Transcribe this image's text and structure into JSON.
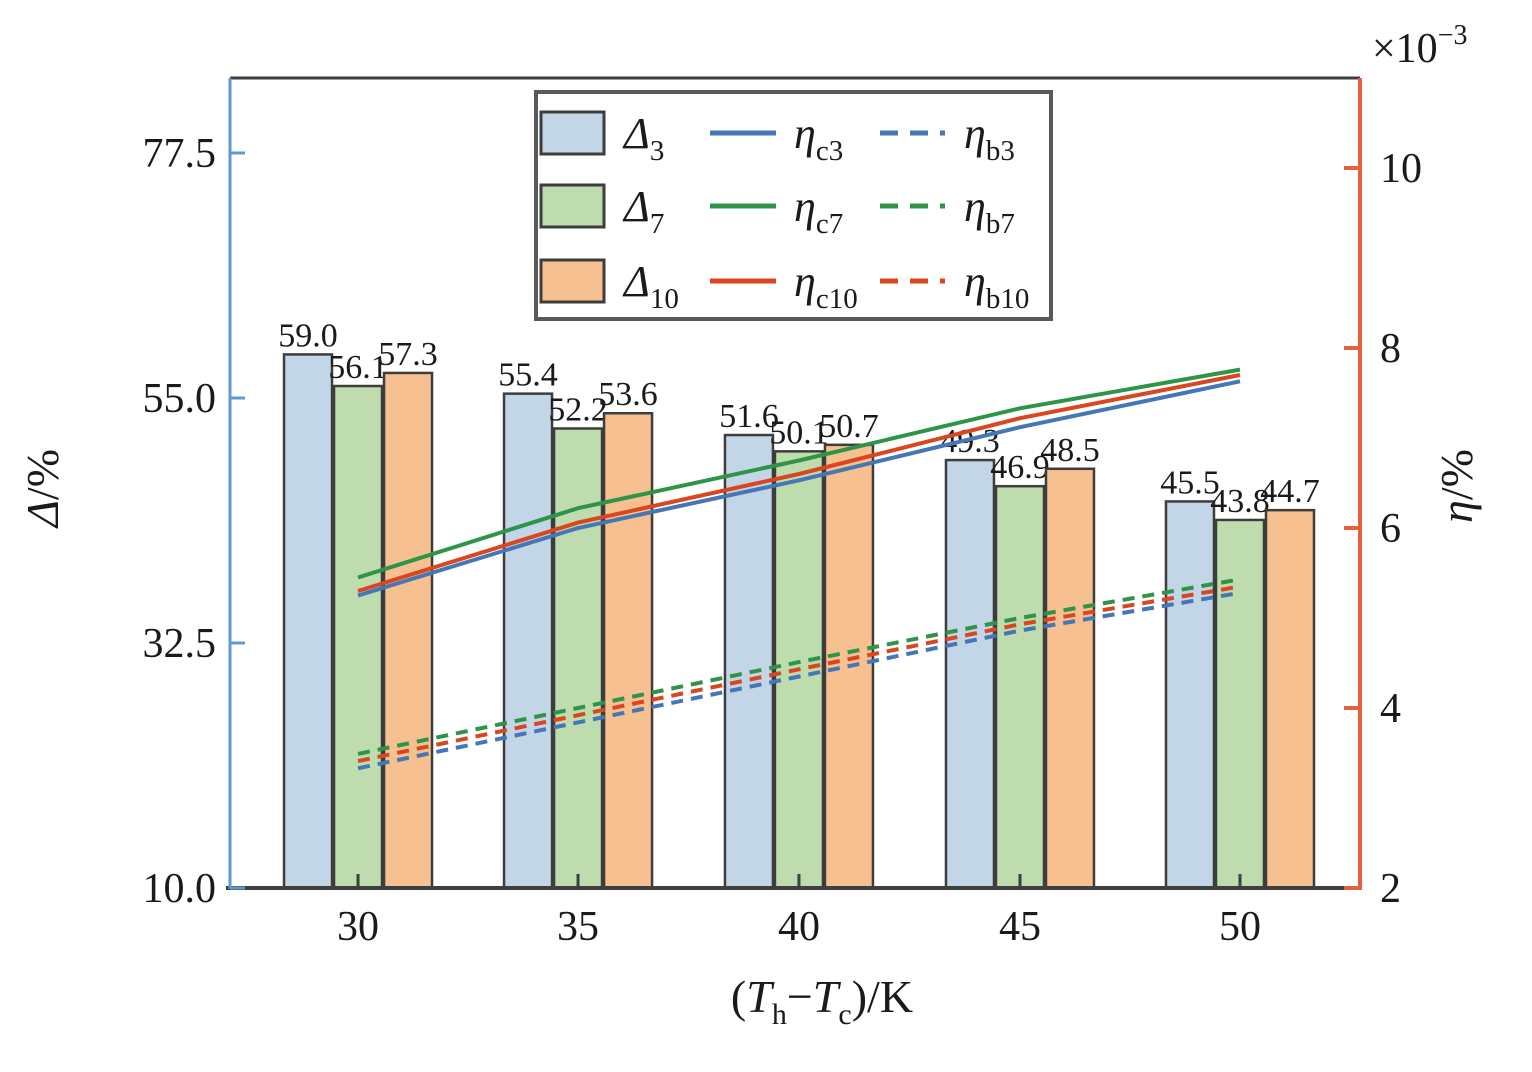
{
  "axes": {
    "left": {
      "title_symbol": "Δ",
      "title_suffix": "/%",
      "tick_labels": [
        "77.5",
        "55.0",
        "32.5",
        "10.0"
      ],
      "tick_values": [
        77.5,
        55.0,
        32.5,
        10.0
      ],
      "color": "#5b9bd5"
    },
    "right": {
      "title_symbol": "η",
      "title_suffix": "/%",
      "multiplier_base": "×10",
      "multiplier_exp": "−3",
      "tick_labels": [
        "10",
        "8",
        "6",
        "4",
        "2"
      ],
      "tick_values": [
        10,
        8,
        6,
        4,
        2
      ],
      "color": "#e5613c"
    },
    "x": {
      "title_parts": {
        "open": "(",
        "t1": "T",
        "s1": "h",
        "minus": "−",
        "t2": "T",
        "s2": "c",
        "close": ")/",
        "unit": "K"
      },
      "tick_labels": [
        "30",
        "35",
        "40",
        "45",
        "50"
      ]
    }
  },
  "legend": {
    "rows": [
      {
        "patch_color": "#c3d6e8",
        "line_color": "#4576b5",
        "patch_label": {
          "base": "Δ",
          "sub": "3"
        },
        "solid_label": {
          "base": "η",
          "sub": "c3"
        },
        "dashed_label": {
          "base": "η",
          "sub": "b3"
        }
      },
      {
        "patch_color": "#bedcad",
        "line_color": "#2e9447",
        "patch_label": {
          "base": "Δ",
          "sub": "7"
        },
        "solid_label": {
          "base": "η",
          "sub": "c7"
        },
        "dashed_label": {
          "base": "η",
          "sub": "b7"
        }
      },
      {
        "patch_color": "#f6c091",
        "line_color": "#da461f",
        "patch_label": {
          "base": "Δ",
          "sub": "10"
        },
        "solid_label": {
          "base": "η",
          "sub": "c10"
        },
        "dashed_label": {
          "base": "η",
          "sub": "b10"
        }
      }
    ],
    "border_color": "#595959"
  },
  "colors": {
    "bar_edge": "#3d3d3d",
    "axis_dark": "#3f3f3f",
    "text": "#1a1a1a"
  },
  "chart_data": {
    "type": "bar",
    "title": "",
    "categories": [
      30,
      35,
      40,
      45,
      50
    ],
    "xlabel": "(Th−Tc)/K",
    "ylabel_left": "Δ/%",
    "ylabel_right": "η/% (×10^−3)",
    "ylim_left": [
      10,
      84.4
    ],
    "ylim_right": [
      2,
      11
    ],
    "grid": false,
    "legend_position": "top-center-inside",
    "bar_series": [
      {
        "name": "Δ3",
        "color": "#c3d6e8",
        "values": [
          59.0,
          55.4,
          51.6,
          49.3,
          45.5
        ]
      },
      {
        "name": "Δ7",
        "color": "#bedcad",
        "values": [
          56.1,
          52.2,
          50.1,
          46.9,
          43.8
        ]
      },
      {
        "name": "Δ10",
        "color": "#f6c091",
        "values": [
          57.3,
          53.6,
          50.7,
          48.5,
          44.7
        ]
      }
    ],
    "line_series": [
      {
        "name": "ηc3",
        "style": "solid",
        "color": "#4576b5",
        "values": [
          5.25,
          6.0,
          6.53,
          7.12,
          7.63
        ]
      },
      {
        "name": "ηc10",
        "style": "solid",
        "color": "#da461f",
        "values": [
          5.3,
          6.06,
          6.6,
          7.22,
          7.7
        ]
      },
      {
        "name": "ηc7",
        "style": "solid",
        "color": "#2e9447",
        "values": [
          5.45,
          6.22,
          6.75,
          7.33,
          7.76
        ]
      },
      {
        "name": "ηb3",
        "style": "dashed",
        "color": "#4576b5",
        "values": [
          3.33,
          3.84,
          4.35,
          4.86,
          5.28
        ]
      },
      {
        "name": "ηb10",
        "style": "dashed",
        "color": "#da461f",
        "values": [
          3.41,
          3.92,
          4.43,
          4.93,
          5.35
        ]
      },
      {
        "name": "ηb7",
        "style": "dashed",
        "color": "#2e9447",
        "values": [
          3.49,
          4.0,
          4.51,
          5.0,
          5.43
        ]
      }
    ]
  }
}
